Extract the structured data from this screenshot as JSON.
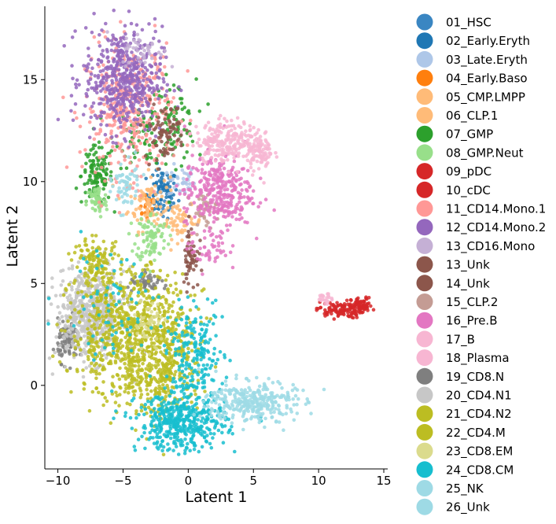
{
  "chart_data": {
    "type": "scatter",
    "title": "",
    "xlabel": "Latent 1",
    "ylabel": "Latent 2",
    "xlim": [
      -11.0,
      15.3
    ],
    "ylim": [
      -4.1,
      18.6
    ],
    "xticks": [
      -10,
      -5,
      0,
      5,
      10,
      15
    ],
    "xtick_labels": [
      "−10",
      "−5",
      "0",
      "5",
      "10",
      "15"
    ],
    "yticks": [
      0,
      5,
      10,
      15
    ],
    "ytick_labels": [
      "0",
      "5",
      "10",
      "15"
    ],
    "grid": false,
    "legend_placement": "right, outside plot",
    "series": [
      {
        "name": "01_HSC",
        "color": "#3a86c2",
        "clusters": [
          {
            "cx": -1.8,
            "cy": 9.6,
            "sx": 0.4,
            "sy": 0.5,
            "n": 25
          }
        ]
      },
      {
        "name": "02_Early.Eryth",
        "color": "#1f77b4",
        "clusters": [
          {
            "cx": -2.0,
            "cy": 9.4,
            "sx": 0.6,
            "sy": 0.6,
            "n": 70
          }
        ]
      },
      {
        "name": "03_Late.Eryth",
        "color": "#aec7e8",
        "clusters": [
          {
            "cx": -0.5,
            "cy": 10.0,
            "sx": 0.5,
            "sy": 0.4,
            "n": 35
          }
        ]
      },
      {
        "name": "04_Early.Baso",
        "color": "#ff7f0e",
        "clusters": [
          {
            "cx": -3.2,
            "cy": 8.9,
            "sx": 0.4,
            "sy": 0.4,
            "n": 25
          }
        ]
      },
      {
        "name": "05_CMP.LMPP",
        "color": "#ffbb78",
        "clusters": [
          {
            "cx": -3.0,
            "cy": 9.0,
            "sx": 0.8,
            "sy": 0.7,
            "n": 90
          }
        ]
      },
      {
        "name": "06_CLP.1",
        "color": "#ffbb78",
        "clusters": [
          {
            "cx": -0.5,
            "cy": 8.0,
            "sx": 0.8,
            "sy": 0.4,
            "n": 60
          }
        ]
      },
      {
        "name": "07_GMP",
        "color": "#2ca02c",
        "clusters": [
          {
            "cx": -7.0,
            "cy": 10.3,
            "sx": 0.6,
            "sy": 0.7,
            "n": 120
          },
          {
            "cx": -3.0,
            "cy": 12.3,
            "sx": 1.3,
            "sy": 0.8,
            "n": 90
          },
          {
            "cx": -1.0,
            "cy": 13.0,
            "sx": 0.8,
            "sy": 1.0,
            "n": 60
          }
        ]
      },
      {
        "name": "08_GMP.Neut",
        "color": "#98df8a",
        "clusters": [
          {
            "cx": -7.0,
            "cy": 9.0,
            "sx": 0.4,
            "sy": 0.4,
            "n": 60
          },
          {
            "cx": -2.8,
            "cy": 7.3,
            "sx": 0.6,
            "sy": 0.6,
            "n": 90
          }
        ]
      },
      {
        "name": "09_pDC",
        "color": "#d62728",
        "clusters": [
          {
            "cx": 11.6,
            "cy": 3.7,
            "sx": 0.9,
            "sy": 0.2,
            "n": 110
          }
        ]
      },
      {
        "name": "10_cDC",
        "color": "#d62728",
        "clusters": [
          {
            "cx": 13.3,
            "cy": 3.9,
            "sx": 0.4,
            "sy": 0.2,
            "n": 60
          }
        ]
      },
      {
        "name": "11_CD14.Mono.1",
        "color": "#ff9896",
        "clusters": [
          {
            "cx": -4.5,
            "cy": 13.5,
            "sx": 1.7,
            "sy": 1.6,
            "n": 380
          }
        ]
      },
      {
        "name": "12_CD14.Mono.2",
        "color": "#9467bd",
        "clusters": [
          {
            "cx": -5.0,
            "cy": 15.0,
            "sx": 1.5,
            "sy": 1.3,
            "n": 500
          }
        ]
      },
      {
        "name": "13_CD16.Mono",
        "color": "#c5b0d5",
        "clusters": [
          {
            "cx": -3.5,
            "cy": 16.5,
            "sx": 0.8,
            "sy": 0.4,
            "n": 40
          }
        ]
      },
      {
        "name": "13_Unk",
        "color": "#8c564b",
        "clusters": [
          {
            "cx": 0.2,
            "cy": 6.3,
            "sx": 0.3,
            "sy": 0.8,
            "n": 60
          }
        ]
      },
      {
        "name": "14_Unk",
        "color": "#8c564b",
        "clusters": [
          {
            "cx": -1.8,
            "cy": 12.5,
            "sx": 0.8,
            "sy": 0.7,
            "n": 80
          }
        ]
      },
      {
        "name": "15_CLP.2",
        "color": "#c49c94",
        "clusters": [
          {
            "cx": 1.2,
            "cy": 8.6,
            "sx": 0.5,
            "sy": 0.4,
            "n": 40
          }
        ]
      },
      {
        "name": "16_Pre.B",
        "color": "#e377c2",
        "clusters": [
          {
            "cx": 2.3,
            "cy": 9.5,
            "sx": 1.3,
            "sy": 0.9,
            "n": 330
          },
          {
            "cx": 1.5,
            "cy": 6.8,
            "sx": 0.8,
            "sy": 0.6,
            "n": 50
          }
        ]
      },
      {
        "name": "17_B",
        "color": "#f7b6d2",
        "clusters": [
          {
            "cx": 3.0,
            "cy": 12.0,
            "sx": 1.2,
            "sy": 0.5,
            "n": 230
          },
          {
            "cx": 5.5,
            "cy": 11.5,
            "sx": 0.5,
            "sy": 0.5,
            "n": 90
          }
        ]
      },
      {
        "name": "18_Plasma",
        "color": "#f7b6d2",
        "clusters": [
          {
            "cx": 10.5,
            "cy": 4.2,
            "sx": 0.3,
            "sy": 0.15,
            "n": 20
          }
        ]
      },
      {
        "name": "19_CD8.N",
        "color": "#7f7f7f",
        "clusters": [
          {
            "cx": -9.2,
            "cy": 2.2,
            "sx": 0.4,
            "sy": 0.5,
            "n": 100
          },
          {
            "cx": -3.0,
            "cy": 5.0,
            "sx": 0.8,
            "sy": 0.2,
            "n": 50
          }
        ]
      },
      {
        "name": "20_CD4.N1",
        "color": "#c7c7c7",
        "clusters": [
          {
            "cx": -7.5,
            "cy": 3.5,
            "sx": 1.3,
            "sy": 1.1,
            "n": 600
          }
        ]
      },
      {
        "name": "21_CD4.N2",
        "color": "#bcbd22",
        "clusters": [
          {
            "cx": -4.5,
            "cy": 2.5,
            "sx": 2.3,
            "sy": 1.6,
            "n": 750
          },
          {
            "cx": -7.0,
            "cy": 6.0,
            "sx": 0.9,
            "sy": 0.6,
            "n": 120
          }
        ]
      },
      {
        "name": "22_CD4.M",
        "color": "#bcbd22",
        "clusters": [
          {
            "cx": -2.0,
            "cy": 1.0,
            "sx": 1.5,
            "sy": 1.3,
            "n": 300
          }
        ]
      },
      {
        "name": "23_CD8.EM",
        "color": "#dbdb8d",
        "clusters": [
          {
            "cx": -3.0,
            "cy": 3.0,
            "sx": 0.6,
            "sy": 0.6,
            "n": 50
          }
        ]
      },
      {
        "name": "24_CD8.CM",
        "color": "#17becf",
        "clusters": [
          {
            "cx": -0.5,
            "cy": -1.8,
            "sx": 1.7,
            "sy": 0.7,
            "n": 450
          },
          {
            "cx": 0.5,
            "cy": 1.5,
            "sx": 1.1,
            "sy": 1.1,
            "n": 200
          },
          {
            "cx": -6.0,
            "cy": 4.0,
            "sx": 2.0,
            "sy": 1.5,
            "n": 70
          }
        ]
      },
      {
        "name": "25_NK",
        "color": "#9edae5",
        "clusters": [
          {
            "cx": 4.8,
            "cy": -0.8,
            "sx": 1.7,
            "sy": 0.5,
            "n": 320
          }
        ]
      },
      {
        "name": "26_Unk",
        "color": "#9edae5",
        "clusters": [
          {
            "cx": -4.8,
            "cy": 9.8,
            "sx": 0.5,
            "sy": 0.6,
            "n": 60
          }
        ]
      }
    ]
  }
}
